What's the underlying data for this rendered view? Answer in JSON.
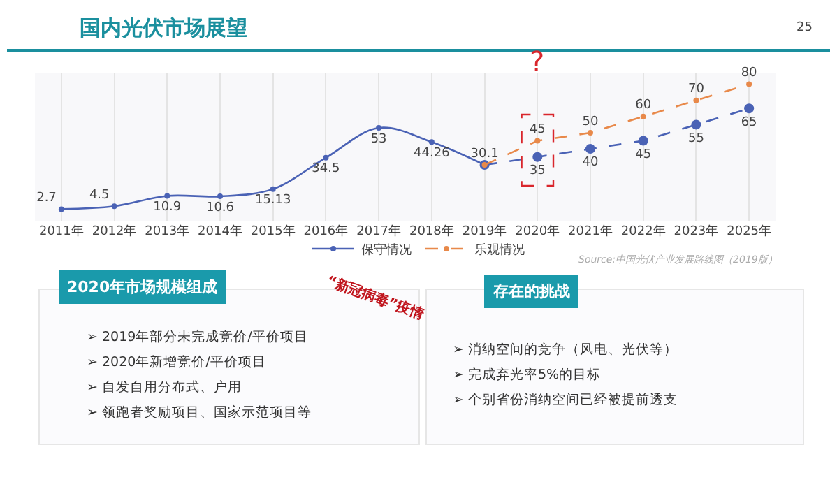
{
  "chart_data": {
    "type": "line",
    "title": "国内光伏市场展望",
    "categories": [
      "2011年",
      "2012年",
      "2013年",
      "2014年",
      "2015年",
      "2016年",
      "2017年",
      "2018年",
      "2019年",
      "2020年",
      "2021年",
      "2022年",
      "2023年",
      "2025年"
    ],
    "series": [
      {
        "name": "保守情况",
        "color": "#4a62b5",
        "line_style": "solid",
        "values": [
          2.7,
          4.5,
          10.9,
          10.6,
          15.13,
          34.5,
          53,
          44.26,
          30.1,
          null,
          null,
          null,
          null,
          null
        ],
        "value_labels": [
          "2.7",
          "4.5",
          "10.9",
          "10.6",
          "15.13",
          "34.5",
          "53",
          "44.26",
          "30.1",
          null,
          null,
          null,
          null,
          null
        ]
      },
      {
        "color": "#4a62b5",
        "line_style": "dashed",
        "values": [
          null,
          null,
          null,
          null,
          null,
          null,
          null,
          null,
          30.1,
          35,
          40,
          45,
          55,
          65
        ],
        "value_labels": [
          null,
          null,
          null,
          null,
          null,
          null,
          null,
          null,
          null,
          "35",
          "40",
          "45",
          "55",
          "65"
        ]
      },
      {
        "name": "乐观情况",
        "color": "#e8894a",
        "line_style": "dashed",
        "values": [
          null,
          null,
          null,
          null,
          null,
          null,
          null,
          null,
          30.1,
          45,
          50,
          60,
          70,
          80
        ],
        "value_labels": [
          null,
          null,
          null,
          null,
          null,
          null,
          null,
          null,
          null,
          "45",
          "50",
          "60",
          "70",
          "80"
        ]
      }
    ],
    "marker": "circle",
    "grid": "x",
    "legend": "bottom",
    "annotations": [
      "?",
      "Source:中国光伏产业发展路线图（2019版）",
      "25",
      "2020年市场规模组成",
      "➢ 2019年部分未完成竞价/平价项目",
      "➢ 2020年新增竞价/平价项目",
      "➢ 自发自用分布式、户用",
      "➢ 领跑者奖励项目、国家示范项目等",
      "“新冠病毒”疫情",
      "存在的挑战",
      "➢ 消纳空间的竞争（风电、光伏等）",
      "➢ 完成弃光率5%的目标",
      "➢ 个别省份消纳空间已经被提前透支"
    ]
  }
}
